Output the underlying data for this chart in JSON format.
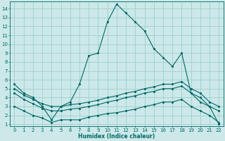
{
  "title": "",
  "xlabel": "Humidex (Indice chaleur)",
  "bg_color": "#cce8e8",
  "grid_color": "#9ecece",
  "line_color": "#006868",
  "xlim": [
    -0.5,
    22.5
  ],
  "ylim": [
    0.8,
    14.8
  ],
  "xticks": [
    0,
    1,
    2,
    3,
    4,
    5,
    6,
    7,
    8,
    9,
    10,
    11,
    12,
    13,
    14,
    15,
    16,
    17,
    18,
    19,
    20,
    21,
    22
  ],
  "yticks": [
    1,
    2,
    3,
    4,
    5,
    6,
    7,
    8,
    9,
    10,
    11,
    12,
    13,
    14
  ],
  "lines": [
    {
      "x": [
        0,
        1,
        2,
        3,
        4,
        5,
        6,
        7,
        8,
        9,
        10,
        11,
        12,
        13,
        14,
        15,
        16,
        17,
        18,
        19,
        20,
        21,
        22
      ],
      "y": [
        5.5,
        4.5,
        4.0,
        3.0,
        1.5,
        3.0,
        3.5,
        5.5,
        8.7,
        9.0,
        12.5,
        14.5,
        13.5,
        12.5,
        11.5,
        9.5,
        8.5,
        7.5,
        9.0,
        4.5,
        3.5,
        3.0,
        1.0
      ]
    },
    {
      "x": [
        0,
        1,
        2,
        3,
        4,
        5,
        6,
        7,
        8,
        9,
        10,
        11,
        12,
        13,
        14,
        15,
        16,
        17,
        18,
        19,
        20,
        21,
        22
      ],
      "y": [
        5.0,
        4.3,
        3.8,
        3.3,
        3.0,
        3.0,
        3.2,
        3.3,
        3.5,
        3.7,
        4.0,
        4.2,
        4.5,
        4.7,
        5.0,
        5.2,
        5.5,
        5.5,
        5.8,
        5.0,
        4.5,
        3.5,
        3.0
      ]
    },
    {
      "x": [
        0,
        1,
        2,
        3,
        4,
        5,
        6,
        7,
        8,
        9,
        10,
        11,
        12,
        13,
        14,
        15,
        16,
        17,
        18,
        19,
        20,
        21,
        22
      ],
      "y": [
        4.5,
        3.8,
        3.3,
        2.8,
        2.5,
        2.5,
        2.7,
        2.8,
        3.0,
        3.2,
        3.5,
        3.7,
        4.0,
        4.2,
        4.5,
        4.7,
        5.0,
        5.0,
        5.3,
        4.5,
        4.0,
        3.0,
        2.5
      ]
    },
    {
      "x": [
        0,
        1,
        2,
        3,
        4,
        5,
        6,
        7,
        8,
        9,
        10,
        11,
        12,
        13,
        14,
        15,
        16,
        17,
        18,
        19,
        20,
        21,
        22
      ],
      "y": [
        3.0,
        2.5,
        2.0,
        1.7,
        1.2,
        1.5,
        1.5,
        1.5,
        1.8,
        2.0,
        2.2,
        2.3,
        2.5,
        2.7,
        3.0,
        3.2,
        3.5,
        3.5,
        3.8,
        3.0,
        2.5,
        2.0,
        1.2
      ]
    }
  ],
  "font_size_tick": 5.0,
  "font_size_label": 5.5
}
